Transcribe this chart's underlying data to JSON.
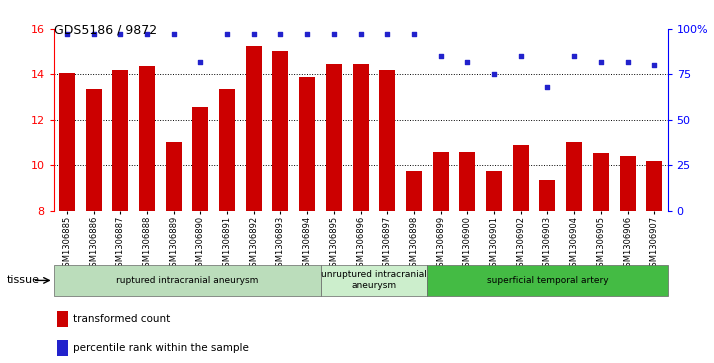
{
  "title": "GDS5186 / 9872",
  "samples": [
    "GSM1306885",
    "GSM1306886",
    "GSM1306887",
    "GSM1306888",
    "GSM1306889",
    "GSM1306890",
    "GSM1306891",
    "GSM1306892",
    "GSM1306893",
    "GSM1306894",
    "GSM1306895",
    "GSM1306896",
    "GSM1306897",
    "GSM1306898",
    "GSM1306899",
    "GSM1306900",
    "GSM1306901",
    "GSM1306902",
    "GSM1306903",
    "GSM1306904",
    "GSM1306905",
    "GSM1306906",
    "GSM1306907"
  ],
  "bar_values": [
    14.05,
    13.35,
    14.2,
    14.35,
    11.0,
    12.55,
    13.35,
    15.25,
    15.05,
    13.9,
    14.45,
    14.45,
    14.2,
    9.75,
    10.6,
    10.6,
    9.75,
    10.9,
    9.35,
    11.0,
    10.55,
    10.4,
    10.2
  ],
  "percentile_values": [
    97,
    97,
    97,
    97,
    97,
    82,
    97,
    97,
    97,
    97,
    97,
    97,
    97,
    97,
    85,
    82,
    75,
    85,
    68,
    85,
    82,
    82,
    80
  ],
  "bar_color": "#cc0000",
  "percentile_color": "#2222cc",
  "ylim_left": [
    8,
    16
  ],
  "ylim_right": [
    0,
    100
  ],
  "yticks_left": [
    8,
    10,
    12,
    14,
    16
  ],
  "yticks_right": [
    0,
    25,
    50,
    75,
    100
  ],
  "ytick_labels_right": [
    "0",
    "25",
    "50",
    "75",
    "100%"
  ],
  "groups": [
    {
      "label": "ruptured intracranial aneurysm",
      "start": 0,
      "end": 10,
      "color": "#bbddbb"
    },
    {
      "label": "unruptured intracranial\naneurysm",
      "start": 10,
      "end": 14,
      "color": "#cceecc"
    },
    {
      "label": "superficial temporal artery",
      "start": 14,
      "end": 23,
      "color": "#44bb44"
    }
  ],
  "legend_bar_label": "transformed count",
  "legend_dot_label": "percentile rank within the sample",
  "tissue_label": "tissue"
}
